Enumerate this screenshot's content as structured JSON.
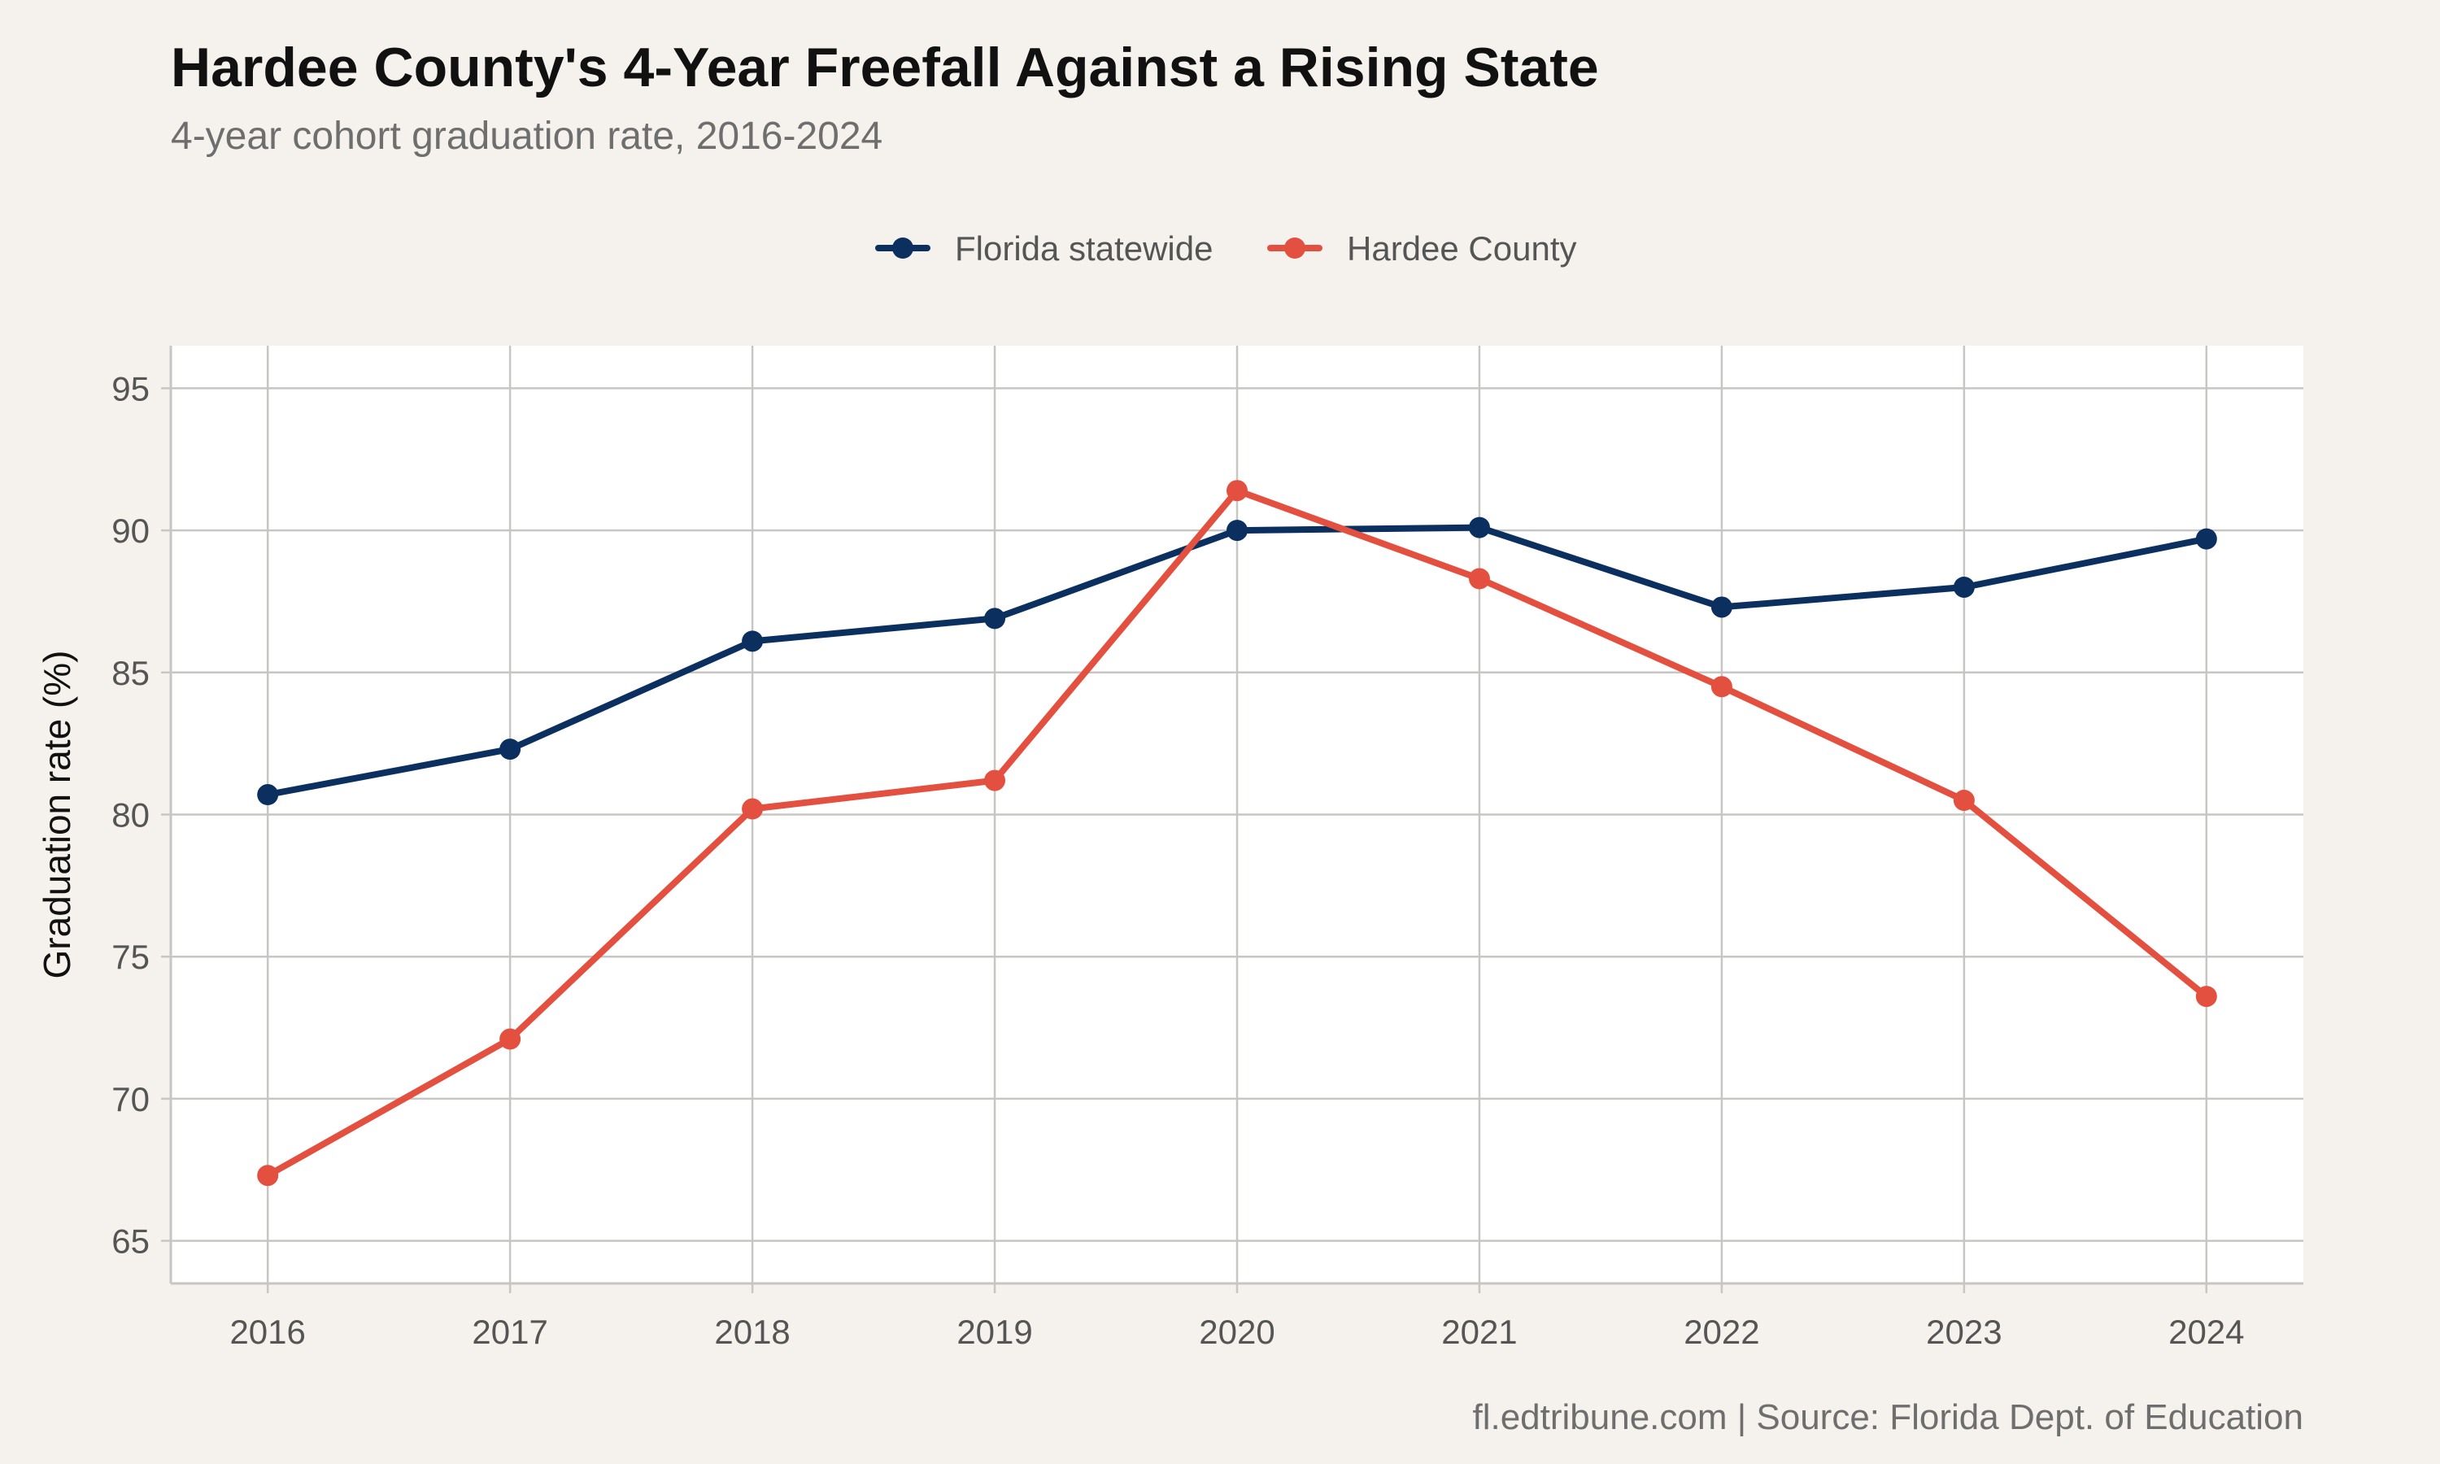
{
  "title": "Hardee County's 4-Year Freefall Against a Rising State",
  "subtitle": "4-year cohort graduation rate, 2016-2024",
  "caption": "fl.edtribune.com | Source: Florida Dept. of Education",
  "colors": {
    "background": "#f5f2ee",
    "panel": "#ffffff",
    "grid": "#c8c6c2",
    "florida": "#0b3060",
    "hardee": "#e4503f"
  },
  "chart_data": {
    "type": "line",
    "x": [
      2016,
      2017,
      2018,
      2019,
      2020,
      2021,
      2022,
      2023,
      2024
    ],
    "ylabel": "Graduation rate (%)",
    "xlabel": "",
    "yticks": [
      65,
      70,
      75,
      80,
      85,
      90,
      95
    ],
    "ylim": [
      63.5,
      96.5
    ],
    "xlim": [
      2015.6,
      2024.4
    ],
    "grid": true,
    "legend": "top-center",
    "series": [
      {
        "name": "Florida statewide",
        "color": "#0b3060",
        "values": [
          80.7,
          82.3,
          86.1,
          86.9,
          90.0,
          90.1,
          87.3,
          88.0,
          89.7
        ]
      },
      {
        "name": "Hardee County",
        "color": "#e4503f",
        "values": [
          67.3,
          72.1,
          80.2,
          81.2,
          91.4,
          88.3,
          84.5,
          80.5,
          73.6
        ]
      }
    ]
  }
}
